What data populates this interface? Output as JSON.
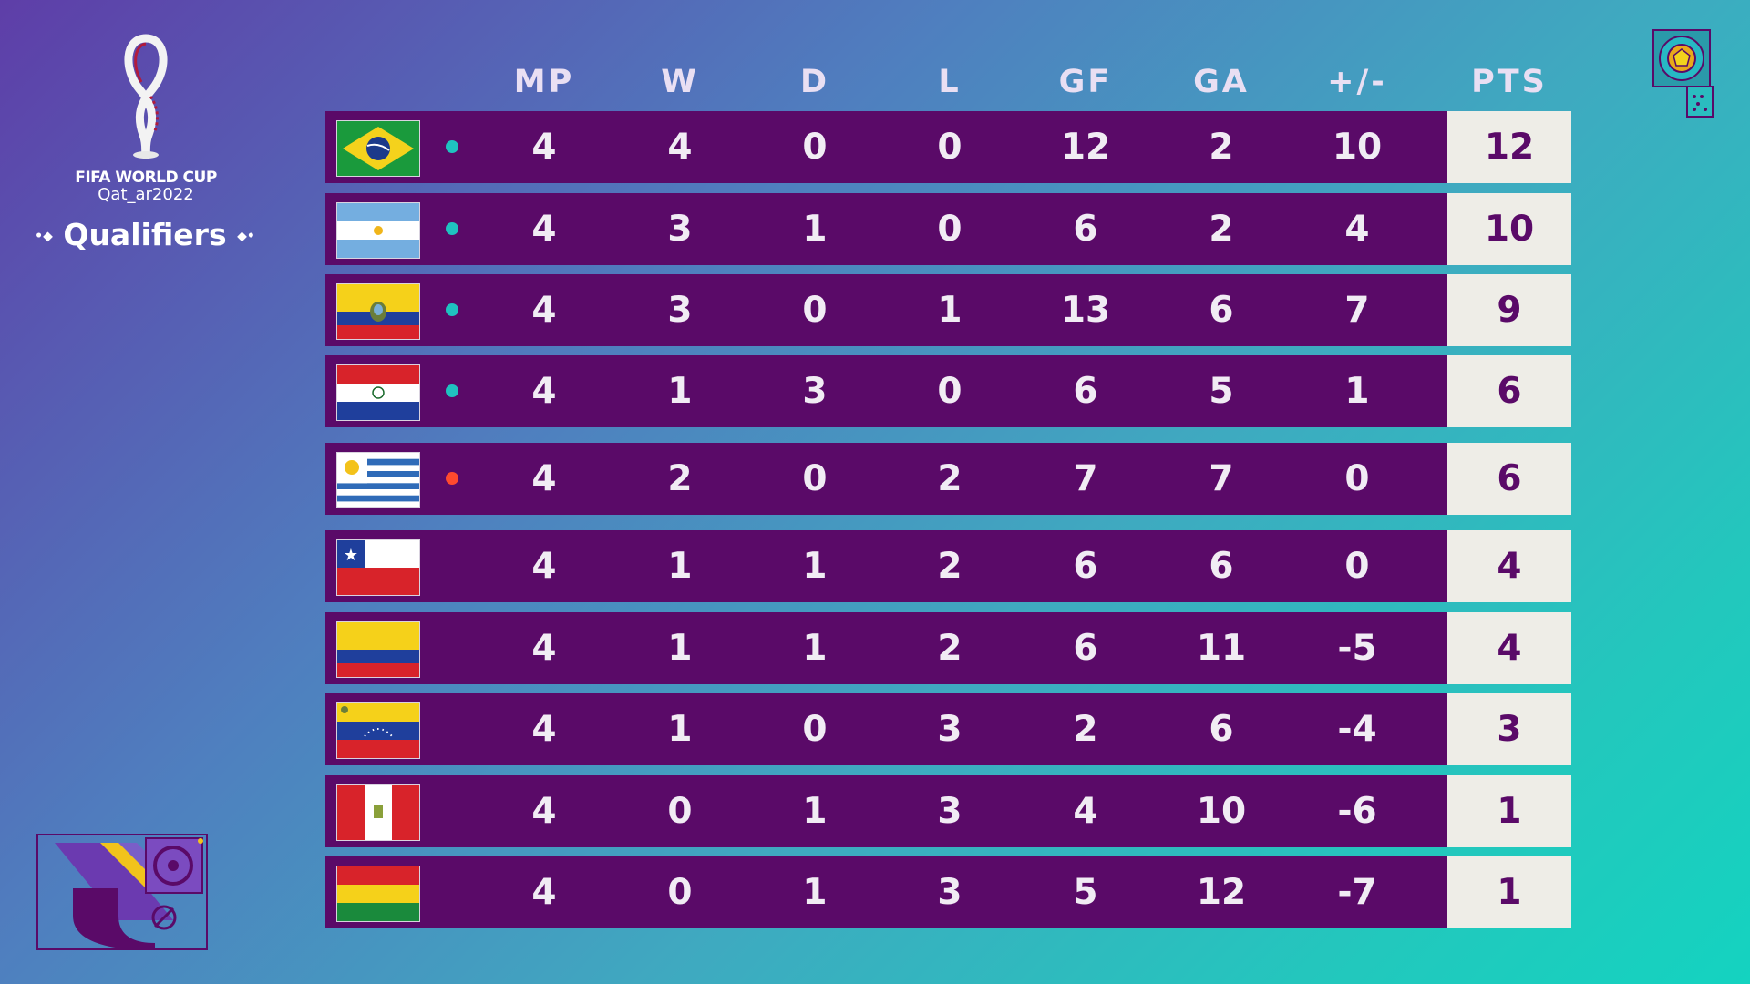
{
  "logo": {
    "line1": "FIFA WORLD CUP",
    "line2": "Qat_ar2022"
  },
  "subtitle": "Qualifiers",
  "columns": [
    "MP",
    "W",
    "D",
    "L",
    "GF",
    "GA",
    "+/-",
    "PTS"
  ],
  "colors": {
    "bar": "#5a0a68",
    "pts_bg": "#eeede7",
    "qualified": "#1fc2c0",
    "playoff": "#ff4a2e"
  },
  "rows": [
    {
      "flag": "brazil-flag",
      "dot": "qualified",
      "mp": "4",
      "w": "4",
      "d": "0",
      "l": "0",
      "gf": "12",
      "ga": "2",
      "gd": "10",
      "pts": "12"
    },
    {
      "flag": "argentina-flag",
      "dot": "qualified",
      "mp": "4",
      "w": "3",
      "d": "1",
      "l": "0",
      "gf": "6",
      "ga": "2",
      "gd": "4",
      "pts": "10"
    },
    {
      "flag": "ecuador-flag",
      "dot": "qualified",
      "mp": "4",
      "w": "3",
      "d": "0",
      "l": "1",
      "gf": "13",
      "ga": "6",
      "gd": "7",
      "pts": "9"
    },
    {
      "flag": "paraguay-flag",
      "dot": "qualified",
      "mp": "4",
      "w": "1",
      "d": "3",
      "l": "0",
      "gf": "6",
      "ga": "5",
      "gd": "1",
      "pts": "6"
    },
    {
      "flag": "uruguay-flag",
      "dot": "playoff",
      "mp": "4",
      "w": "2",
      "d": "0",
      "l": "2",
      "gf": "7",
      "ga": "7",
      "gd": "0",
      "pts": "6"
    },
    {
      "flag": "chile-flag",
      "dot": "none",
      "mp": "4",
      "w": "1",
      "d": "1",
      "l": "2",
      "gf": "6",
      "ga": "6",
      "gd": "0",
      "pts": "4"
    },
    {
      "flag": "colombia-flag",
      "dot": "none",
      "mp": "4",
      "w": "1",
      "d": "1",
      "l": "2",
      "gf": "6",
      "ga": "11",
      "gd": "-5",
      "pts": "4"
    },
    {
      "flag": "venezuela-flag",
      "dot": "none",
      "mp": "4",
      "w": "1",
      "d": "0",
      "l": "3",
      "gf": "2",
      "ga": "6",
      "gd": "-4",
      "pts": "3"
    },
    {
      "flag": "peru-flag",
      "dot": "none",
      "mp": "4",
      "w": "0",
      "d": "1",
      "l": "3",
      "gf": "4",
      "ga": "10",
      "gd": "-6",
      "pts": "1"
    },
    {
      "flag": "bolivia-flag",
      "dot": "none",
      "mp": "4",
      "w": "0",
      "d": "1",
      "l": "3",
      "gf": "5",
      "ga": "12",
      "gd": "-7",
      "pts": "1"
    }
  ]
}
